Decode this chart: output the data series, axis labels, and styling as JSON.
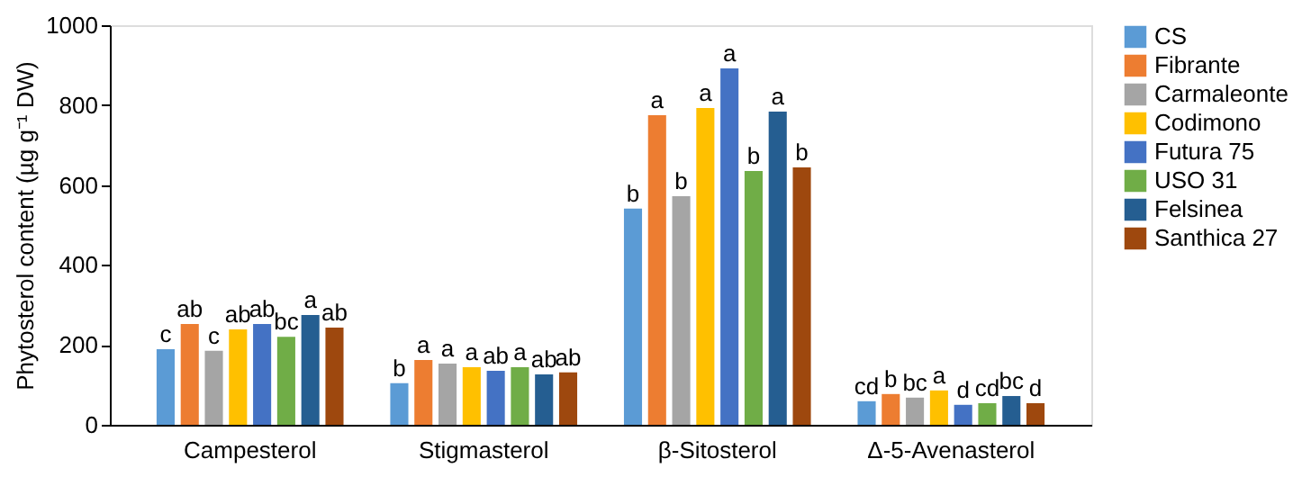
{
  "chart_data": {
    "type": "bar",
    "ylabel": "Phytosterol content (µg g⁻¹ DW)",
    "categories": [
      "Campesterol",
      "Stigmasterol",
      "β-Sitosterol",
      "Δ-5-Avenasterol"
    ],
    "ylim": [
      0,
      1000
    ],
    "yticks": [
      0,
      200,
      400,
      600,
      800,
      1000
    ],
    "grid": false,
    "legend": "top right",
    "series": [
      {
        "name": "CS",
        "color": "#5b9bd5",
        "values": [
          189,
          104,
          541,
          59
        ],
        "value_labels": [
          "c",
          "b",
          "b",
          "cd"
        ]
      },
      {
        "name": "Fibrante",
        "color": "#ed7d31",
        "values": [
          252,
          162,
          775,
          77
        ],
        "value_labels": [
          "ab",
          "a",
          "a",
          "b"
        ]
      },
      {
        "name": "Carmaleonte",
        "color": "#a5a5a5",
        "values": [
          185,
          153,
          572,
          68
        ],
        "value_labels": [
          "c",
          "a",
          "b",
          "bc"
        ]
      },
      {
        "name": "Codimono",
        "color": "#ffc000",
        "values": [
          239,
          144,
          793,
          86
        ],
        "value_labels": [
          "ab",
          "a",
          "a",
          "a"
        ]
      },
      {
        "name": "Futura 75",
        "color": "#4472c4",
        "values": [
          252,
          135,
          892,
          50
        ],
        "value_labels": [
          "ab",
          "ab",
          "a",
          "d"
        ]
      },
      {
        "name": "USO 31",
        "color": "#70ad47",
        "values": [
          220,
          144,
          635,
          54
        ],
        "value_labels": [
          "bc",
          "a",
          "b",
          "cd"
        ]
      },
      {
        "name": "Felsinea",
        "color": "#255e91",
        "values": [
          275,
          126,
          784,
          72
        ],
        "value_labels": [
          "a",
          "ab",
          "a",
          "bc"
        ]
      },
      {
        "name": "Santhica 27",
        "color": "#9e480e",
        "values": [
          243,
          131,
          644,
          54
        ],
        "value_labels": [
          "ab",
          "ab",
          "b",
          "d"
        ]
      }
    ]
  }
}
